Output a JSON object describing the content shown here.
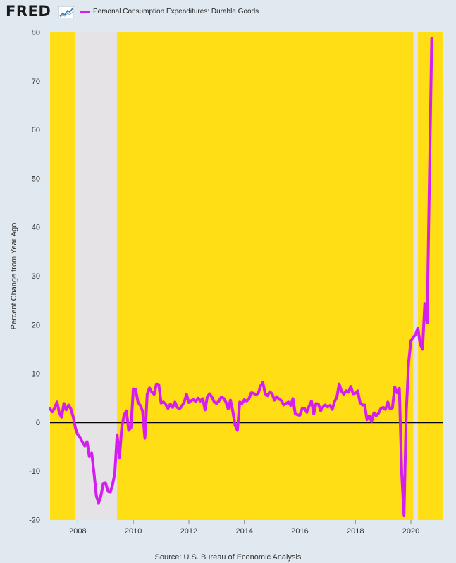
{
  "header": {
    "logo_text": "FRED",
    "legend_label": "Personal Consumption Expenditures: Durable Goods"
  },
  "colors": {
    "plot_background": "#ffde15",
    "recession_shade": "#e6e3e6",
    "series": "#d41ef0",
    "zero_line": "#000000"
  },
  "source": "Source: U.S. Bureau of Economic Analysis",
  "chart_data": {
    "type": "line",
    "title": "",
    "xlabel": "",
    "ylabel": "Percent Change from Year Ago",
    "ylim": [
      -20,
      80
    ],
    "xlim": [
      "2007-01",
      "2021-03"
    ],
    "y_ticks": [
      -20,
      -10,
      0,
      10,
      20,
      30,
      40,
      50,
      60,
      70,
      80
    ],
    "x_ticks": [
      "2008",
      "2010",
      "2012",
      "2014",
      "2016",
      "2018",
      "2020"
    ],
    "grid": false,
    "legend": "top-left",
    "recessions": [
      {
        "start": "2007-12",
        "end": "2009-06"
      },
      {
        "start": "2020-02",
        "end": "2020-04"
      }
    ],
    "series": [
      {
        "name": "Personal Consumption Expenditures: Durable Goods",
        "frequency": "monthly",
        "start": "2007-01",
        "values": [
          2.8,
          2.2,
          3.0,
          4.2,
          2.0,
          1.1,
          3.9,
          2.6,
          3.6,
          2.8,
          1.2,
          -1.2,
          -2.5,
          -3.1,
          -4.0,
          -4.8,
          -3.9,
          -7.0,
          -6.2,
          -10.3,
          -15.0,
          -16.5,
          -15.0,
          -12.5,
          -12.4,
          -14.0,
          -14.3,
          -12.8,
          -10.4,
          -2.5,
          -7.2,
          -1.0,
          1.5,
          2.4,
          -1.6,
          -1.0,
          6.9,
          6.8,
          4.2,
          3.5,
          2.4,
          -3.2,
          5.8,
          7.1,
          6.2,
          5.8,
          7.9,
          7.8,
          4.0,
          4.2,
          3.7,
          2.9,
          3.8,
          3.1,
          4.2,
          3.1,
          2.8,
          3.4,
          4.2,
          5.8,
          4.1,
          4.5,
          4.7,
          4.3,
          5.0,
          4.4,
          4.9,
          2.6,
          5.3,
          5.9,
          5.2,
          4.2,
          3.9,
          4.4,
          5.2,
          5.0,
          4.2,
          2.8,
          4.6,
          2.3,
          -0.6,
          -1.6,
          4.2,
          3.9,
          4.7,
          4.4,
          4.9,
          6.1,
          6.0,
          5.7,
          6.0,
          7.5,
          8.2,
          5.9,
          5.5,
          6.3,
          5.9,
          4.6,
          5.3,
          4.8,
          4.5,
          3.6,
          3.9,
          4.2,
          3.5,
          4.9,
          1.8,
          1.6,
          1.5,
          2.9,
          2.9,
          2.1,
          3.4,
          4.4,
          1.8,
          3.9,
          3.8,
          2.4,
          3.2,
          3.6,
          3.2,
          3.5,
          2.7,
          4.3,
          5.2,
          7.9,
          6.4,
          5.8,
          6.5,
          6.2,
          7.4,
          5.9,
          6.0,
          6.5,
          4.1,
          3.6,
          3.6,
          0.6,
          1.4,
          0.2,
          2.0,
          1.4,
          1.9,
          2.9,
          3.1,
          2.7,
          4.2,
          2.8,
          3.0,
          7.3,
          6.1,
          7.0,
          -10.2,
          -19.0,
          2.3,
          12.3,
          16.8,
          17.5,
          18.0,
          19.4,
          16.1,
          15.0,
          24.4,
          20.4,
          50.0,
          78.8
        ]
      }
    ]
  }
}
